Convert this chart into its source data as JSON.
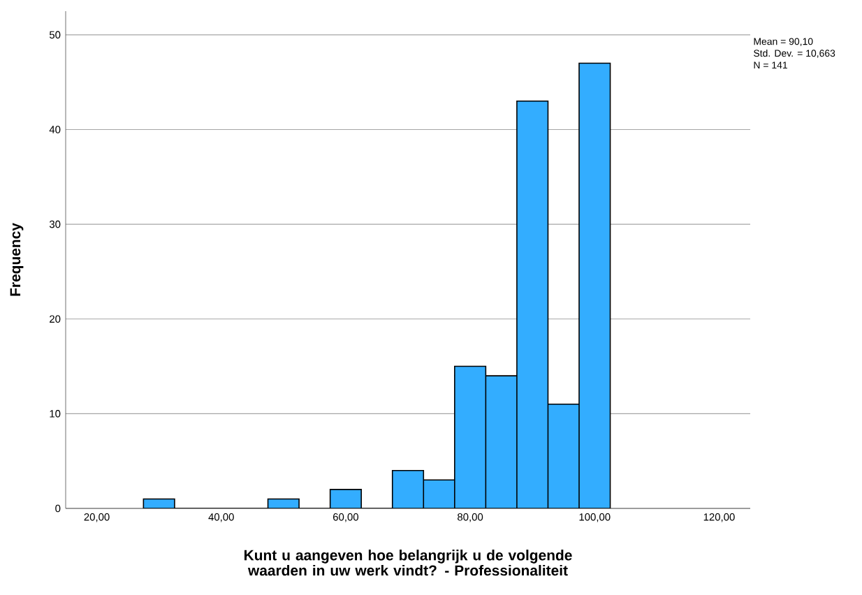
{
  "chart_data": {
    "type": "histogram",
    "xlabel": "Kunt u aangeven hoe belangrijk u de volgende waarden in uw werk vindt? - Professionaliteit",
    "ylabel": "Frequency",
    "bins": [
      27.5,
      32.5,
      37.5,
      42.5,
      47.5,
      52.5,
      57.5,
      62.5,
      67.5,
      72.5,
      77.5,
      82.5,
      87.5,
      92.5,
      97.5,
      102.5
    ],
    "values": [
      1,
      0,
      0,
      0,
      1,
      0,
      2,
      0,
      4,
      3,
      15,
      14,
      43,
      11,
      47
    ],
    "color": "#33adff",
    "xlim": [
      15,
      125
    ],
    "ylim": [
      0,
      52.5
    ],
    "xticks": [
      {
        "value": 20,
        "label": "20,00"
      },
      {
        "value": 40,
        "label": "40,00"
      },
      {
        "value": 60,
        "label": "60,00"
      },
      {
        "value": 80,
        "label": "80,00"
      },
      {
        "value": 100,
        "label": "100,00"
      },
      {
        "value": 120,
        "label": "120,00"
      }
    ],
    "yticks": [
      0,
      10,
      20,
      30,
      40,
      50
    ],
    "grid": "y",
    "annotations": [
      "Mean = 90,10",
      "Std. Dev. = 10,663",
      "N = 141"
    ]
  }
}
